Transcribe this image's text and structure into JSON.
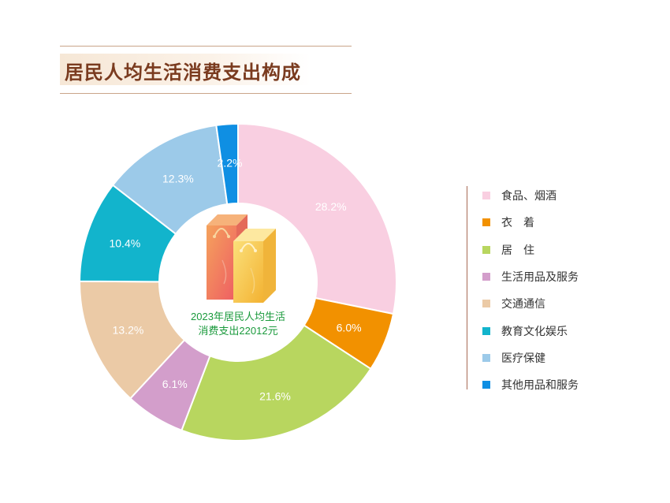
{
  "title": "居民人均生活消费支出构成",
  "center": {
    "line1": "2023年居民人均生活",
    "line2": "消费支出22012元"
  },
  "chart_data": {
    "type": "pie",
    "subtype": "donut",
    "title": "居民人均生活消费支出构成",
    "unit": "%",
    "categories": [
      "食品、烟酒",
      "衣　着",
      "居　住",
      "生活用品及服务",
      "交通通信",
      "教育文化娱乐",
      "医疗保健",
      "其他用品和服务"
    ],
    "values": [
      28.2,
      6.0,
      21.6,
      6.1,
      13.2,
      10.4,
      12.3,
      2.2
    ],
    "labels": [
      "28.2%",
      "6.0%",
      "21.6%",
      "6.1%",
      "13.2%",
      "10.4%",
      "12.3%",
      "2.2%"
    ],
    "colors": [
      "#f9cfe1",
      "#f29100",
      "#b8d65f",
      "#d39ecb",
      "#ebcaa6",
      "#12b4cc",
      "#9ccae9",
      "#0f8fe3"
    ],
    "legend_position": "right",
    "start": "top, clockwise"
  },
  "bag_icon_colors": [
    "#f07a6a",
    "#f6c342"
  ]
}
